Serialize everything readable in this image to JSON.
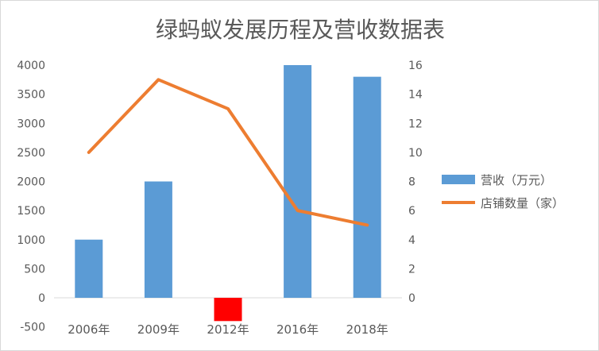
{
  "chart_data": {
    "type": "bar+line",
    "title": "绿蚂蚁发展历程及营收数据表",
    "categories": [
      "2006年",
      "2009年",
      "2012年",
      "2016年",
      "2018年"
    ],
    "series": [
      {
        "name": "营收（万元）",
        "type": "bar",
        "axis": "left",
        "values": [
          1000,
          2000,
          -400,
          4000,
          3800
        ],
        "color": "#5b9bd5",
        "highlight": {
          "index": 2,
          "color": "#ff0000"
        }
      },
      {
        "name": "店铺数量（家）",
        "type": "line",
        "axis": "right",
        "values": [
          10,
          15,
          13,
          6,
          5
        ],
        "color": "#ed7d31"
      }
    ],
    "left_axis": {
      "ylim": [
        -500,
        4000
      ],
      "ticks": [
        "-500",
        "0",
        "500",
        "1000",
        "1500",
        "2000",
        "2500",
        "3000",
        "3500",
        "4000"
      ]
    },
    "right_axis": {
      "ylim": [
        -2,
        16
      ],
      "ticks": [
        "0",
        "2",
        "4",
        "6",
        "8",
        "10",
        "12",
        "14",
        "16"
      ]
    },
    "grid": false,
    "legend": "right"
  }
}
